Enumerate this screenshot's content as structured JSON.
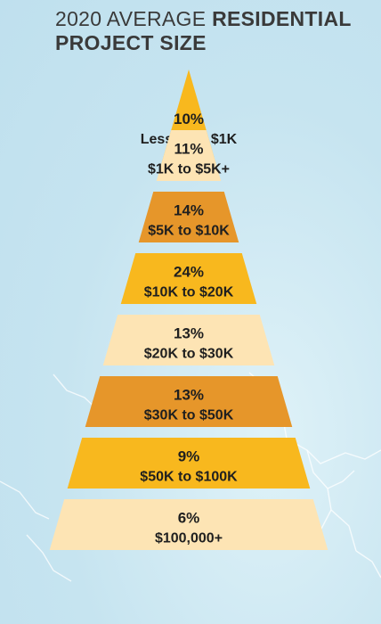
{
  "header": {
    "title_light": "2020 AVERAGE",
    "title_bold_1": "RESIDENTIAL",
    "title_bold_2": "PROJECT SIZE"
  },
  "chart_data": {
    "type": "bar",
    "title": "2020 AVERAGE RESIDENTIAL PROJECT SIZE",
    "categories": [
      "Less than $1K",
      "$1K to $5K+",
      "$5K to $10K",
      "$10K to $20K",
      "$20K to $30K",
      "$30K to $50K",
      "$50K to $100K",
      "$100,000+"
    ],
    "values": [
      10,
      11,
      14,
      24,
      13,
      13,
      9,
      6
    ],
    "value_labels": [
      "10%",
      "11%",
      "14%",
      "24%",
      "13%",
      "13%",
      "9%",
      "6%"
    ],
    "unit": "%",
    "colors": [
      "#f8b81e",
      "#fde4b4",
      "#e6962a",
      "#f8b81e",
      "#fde4b4",
      "#e6962a",
      "#f8b81e",
      "#fde4b4"
    ]
  }
}
